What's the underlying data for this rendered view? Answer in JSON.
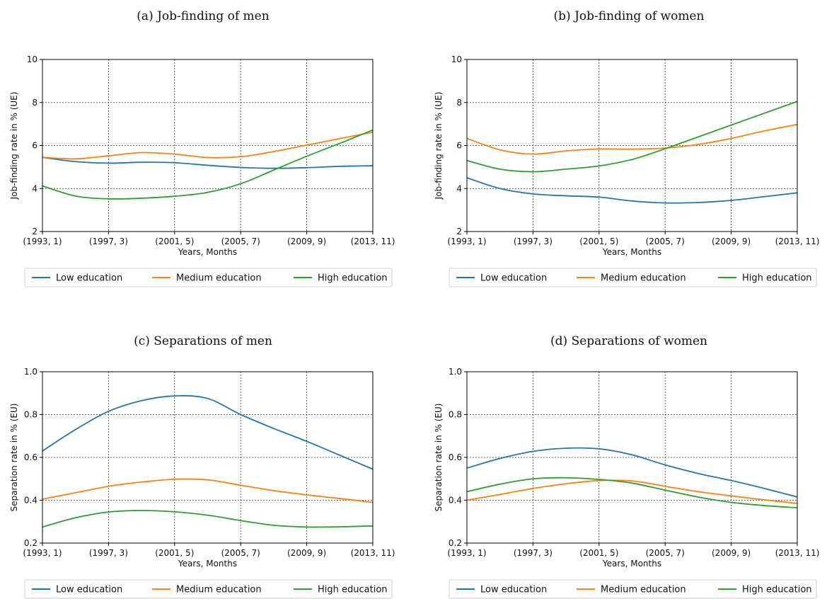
{
  "chart_data": [
    {
      "type": "line",
      "title": "(a) Job-finding of men",
      "xlabel": "Years, Months",
      "ylabel": "Job-finding rate in % (UE)",
      "x_ticks": [
        "(1993, 1)",
        "(1997, 3)",
        "(2001, 5)",
        "(2005, 7)",
        "(2009, 9)",
        "(2013, 11)"
      ],
      "y_ticks": [
        "2",
        "4",
        "6",
        "8",
        "10"
      ],
      "ylim": [
        2,
        10
      ],
      "x": [
        0,
        0.1,
        0.2,
        0.3,
        0.4,
        0.5,
        0.6,
        0.7,
        0.8,
        0.9,
        1.0
      ],
      "series": [
        {
          "name": "Low education",
          "color": "#1f77b4",
          "values": [
            5.45,
            5.25,
            5.18,
            5.22,
            5.2,
            5.08,
            4.98,
            4.94,
            4.97,
            5.03,
            5.06
          ]
        },
        {
          "name": "Medium education",
          "color": "#ff7f0e",
          "values": [
            5.45,
            5.38,
            5.52,
            5.67,
            5.6,
            5.44,
            5.48,
            5.72,
            6.02,
            6.32,
            6.62
          ]
        },
        {
          "name": "High education",
          "color": "#2ca02c",
          "values": [
            4.12,
            3.65,
            3.52,
            3.55,
            3.64,
            3.82,
            4.22,
            4.86,
            5.5,
            6.1,
            6.72
          ]
        }
      ],
      "legend": "bottom",
      "grid": true
    },
    {
      "type": "line",
      "title": "(b) Job-finding of women",
      "xlabel": "Years, Months",
      "ylabel": "Job-finding rate in % (UE)",
      "x_ticks": [
        "(1993, 1)",
        "(1997, 3)",
        "(2001, 5)",
        "(2005, 7)",
        "(2009, 9)",
        "(2013, 11)"
      ],
      "y_ticks": [
        "2",
        "4",
        "6",
        "8",
        "10"
      ],
      "ylim": [
        2,
        10
      ],
      "x": [
        0,
        0.1,
        0.2,
        0.3,
        0.4,
        0.5,
        0.6,
        0.7,
        0.8,
        0.9,
        1.0
      ],
      "series": [
        {
          "name": "Low education",
          "color": "#1f77b4",
          "values": [
            4.5,
            4.0,
            3.75,
            3.66,
            3.6,
            3.42,
            3.33,
            3.35,
            3.45,
            3.62,
            3.8
          ]
        },
        {
          "name": "Medium education",
          "color": "#ff7f0e",
          "values": [
            6.33,
            5.8,
            5.6,
            5.75,
            5.84,
            5.83,
            5.88,
            6.05,
            6.33,
            6.68,
            6.98
          ]
        },
        {
          "name": "High education",
          "color": "#2ca02c",
          "values": [
            5.3,
            4.9,
            4.78,
            4.9,
            5.05,
            5.35,
            5.85,
            6.4,
            6.95,
            7.5,
            8.05
          ]
        }
      ],
      "legend": "bottom",
      "grid": true
    },
    {
      "type": "line",
      "title": "(c) Separations of men",
      "xlabel": "Years, Months",
      "ylabel": "Separation rate in % (EU)",
      "x_ticks": [
        "(1993, 1)",
        "(1997, 3)",
        "(2001, 5)",
        "(2005, 7)",
        "(2009, 9)",
        "(2013, 11)"
      ],
      "y_ticks": [
        "0.2",
        "0.4",
        "0.6",
        "0.8",
        "1.0"
      ],
      "ylim": [
        0.2,
        1.0
      ],
      "x": [
        0,
        0.1,
        0.2,
        0.3,
        0.4,
        0.5,
        0.6,
        0.7,
        0.8,
        0.9,
        1.0
      ],
      "series": [
        {
          "name": "Low education",
          "color": "#1f77b4",
          "values": [
            0.63,
            0.73,
            0.815,
            0.865,
            0.887,
            0.875,
            0.8,
            0.735,
            0.675,
            0.61,
            0.545
          ]
        },
        {
          "name": "Medium education",
          "color": "#ff7f0e",
          "values": [
            0.405,
            0.435,
            0.465,
            0.485,
            0.498,
            0.495,
            0.47,
            0.445,
            0.425,
            0.408,
            0.39
          ]
        },
        {
          "name": "High education",
          "color": "#2ca02c",
          "values": [
            0.275,
            0.318,
            0.345,
            0.352,
            0.346,
            0.33,
            0.305,
            0.283,
            0.275,
            0.276,
            0.28
          ]
        }
      ],
      "legend": "bottom",
      "grid": true
    },
    {
      "type": "line",
      "title": "(d) Separations of women",
      "xlabel": "Years, Months",
      "ylabel": "Separation rate in % (EU)",
      "x_ticks": [
        "(1993, 1)",
        "(1997, 3)",
        "(2001, 5)",
        "(2005, 7)",
        "(2009, 9)",
        "(2013, 11)"
      ],
      "y_ticks": [
        "0.2",
        "0.4",
        "0.6",
        "0.8",
        "1.0"
      ],
      "ylim": [
        0.2,
        1.0
      ],
      "x": [
        0,
        0.1,
        0.2,
        0.3,
        0.4,
        0.5,
        0.6,
        0.7,
        0.8,
        0.9,
        1.0
      ],
      "series": [
        {
          "name": "Low education",
          "color": "#1f77b4",
          "values": [
            0.55,
            0.595,
            0.628,
            0.643,
            0.64,
            0.612,
            0.565,
            0.525,
            0.492,
            0.455,
            0.415
          ]
        },
        {
          "name": "Medium education",
          "color": "#ff7f0e",
          "values": [
            0.4,
            0.427,
            0.455,
            0.477,
            0.492,
            0.49,
            0.465,
            0.44,
            0.42,
            0.402,
            0.385
          ]
        },
        {
          "name": "High education",
          "color": "#2ca02c",
          "values": [
            0.44,
            0.475,
            0.5,
            0.505,
            0.497,
            0.48,
            0.447,
            0.415,
            0.39,
            0.375,
            0.365
          ]
        }
      ],
      "legend": "bottom",
      "grid": true
    }
  ]
}
